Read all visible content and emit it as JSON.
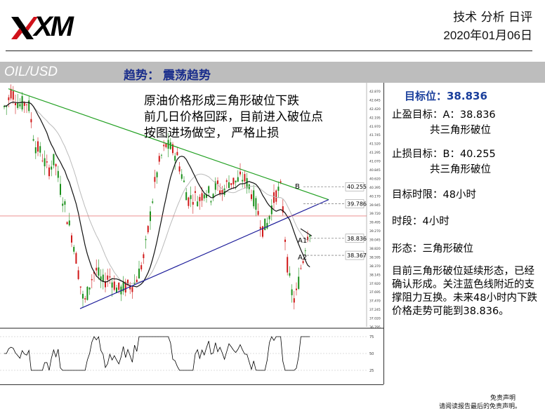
{
  "header": {
    "logo_text": "XM",
    "title": "技术 分析 日评",
    "date": "2020年01月06日"
  },
  "band": {
    "pair": "OIL/USD",
    "trend_label": "趋势：",
    "trend_value": "震荡趋势"
  },
  "annotation": {
    "line1": "原油价格形成三角形破位下跌",
    "line2": "前几日价格回踩，目前进入破位点",
    "line3": "按图进场做空， 严格止损"
  },
  "side": {
    "target": "目标位：38.836",
    "take_profit": "止盈目标：A：38.836",
    "take_profit_sub": "共三角形破位",
    "stop_loss": "止损目标：B：40.255",
    "stop_loss_sub": "共三角形破位",
    "time_limit": "目标时限：48小时",
    "timeframe": "时段：4小时",
    "pattern": "形态：三角形破位",
    "summary": "目前三角形破位延续形态，已经确认形成。关注蓝色线附近的支撑阻力互换。未来48小时内下跌价格走势可能到38.836。"
  },
  "disclaimer": {
    "line1": "免责声明",
    "line2": "请阅读报告最后的免责声明。"
  },
  "chart_data": {
    "type": "candlestick",
    "levels": [
      {
        "label": "B",
        "value": 40.255,
        "text": "40.255"
      },
      {
        "value": 39.786,
        "text": "39.786"
      },
      {
        "label": "A1",
        "value": 38.836,
        "text": "38.836"
      },
      {
        "label": "A2",
        "value": 38.367,
        "text": "38.367"
      }
    ],
    "ylim": [
      36.4,
      43.0
    ],
    "y_ticks": [
      "42.870",
      "42.645",
      "42.420",
      "42.195",
      "41.970",
      "41.745",
      "41.520",
      "41.295",
      "41.070",
      "40.845",
      "40.620",
      "40.395",
      "40.170",
      "39.945",
      "39.720",
      "39.495",
      "39.270",
      "39.045",
      "38.820",
      "38.595",
      "38.370",
      "38.145",
      "37.920",
      "37.695",
      "37.470",
      "37.245",
      "37.020",
      "36.795"
    ],
    "indicator_ticks": [
      "75",
      "50",
      "25"
    ],
    "colors": {
      "up": "#1a8f1a",
      "down": "#d01818",
      "ma": "#111111",
      "ma_slow": "#bbbbbb",
      "triangle_top": "#22a022",
      "triangle_bottom": "#1a1a99",
      "price_line": "#e05050"
    }
  }
}
